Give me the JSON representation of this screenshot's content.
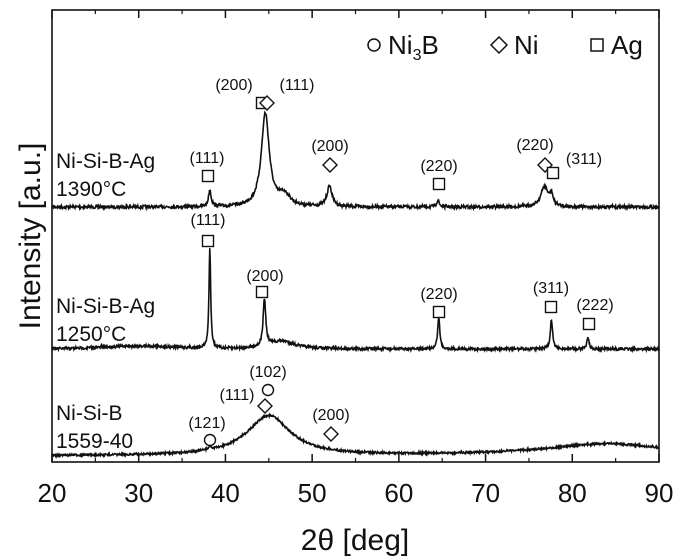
{
  "chart_data": {
    "type": "line",
    "title": "",
    "xlabel": "2θ [deg]",
    "ylabel": "Intensity [a.u.]",
    "xlim": [
      20,
      90
    ],
    "x_ticks": [
      "20",
      "30",
      "40",
      "50",
      "60",
      "70",
      "80",
      "90"
    ],
    "y_ticks_shown": false,
    "grid": false,
    "legend": {
      "placement": "top-right",
      "entries": [
        {
          "marker": "circle",
          "label_main": "Ni",
          "label_sub": "3",
          "label_tail": "B"
        },
        {
          "marker": "diamond",
          "label_main": "Ni",
          "label_sub": "",
          "label_tail": ""
        },
        {
          "marker": "square",
          "label_main": "Ag",
          "label_sub": "",
          "label_tail": ""
        }
      ]
    },
    "series": [
      {
        "name": "Ni-Si-B-Ag 1390°C",
        "label_lines": [
          "Ni-Si-B-Ag",
          "1390°C"
        ],
        "baseline": 0.0,
        "peaks": [
          {
            "x": 38.2,
            "height": 0.18,
            "width": 0.18
          },
          {
            "x": 44.6,
            "height": 1.0,
            "width": 0.55
          },
          {
            "x": 46.8,
            "height": 0.12,
            "width": 0.8
          },
          {
            "x": 52.0,
            "height": 0.22,
            "width": 0.35
          },
          {
            "x": 64.5,
            "height": 0.07,
            "width": 0.18
          },
          {
            "x": 76.8,
            "height": 0.22,
            "width": 0.5
          },
          {
            "x": 77.6,
            "height": 0.12,
            "width": 0.2
          }
        ],
        "annotations": [
          {
            "x": 38.2,
            "marker": "square",
            "label": "(111)"
          },
          {
            "x": 44.3,
            "marker": "square",
            "label": "(200)"
          },
          {
            "x": 44.9,
            "marker": "diamond",
            "label": "(111)"
          },
          {
            "x": 52.0,
            "marker": "diamond",
            "label": "(200)"
          },
          {
            "x": 64.5,
            "marker": "square",
            "label": "(220)"
          },
          {
            "x": 76.7,
            "marker": "diamond",
            "label": "(220)"
          },
          {
            "x": 77.7,
            "marker": "square",
            "label": "(311)"
          }
        ]
      },
      {
        "name": "Ni-Si-B-Ag 1250°C",
        "label_lines": [
          "Ni-Si-B-Ag",
          "1250°C"
        ],
        "baseline": 0.0,
        "peaks": [
          {
            "x": 38.2,
            "height": 1.0,
            "width": 0.12
          },
          {
            "x": 44.5,
            "height": 0.48,
            "width": 0.18
          },
          {
            "x": 46.5,
            "height": 0.08,
            "width": 1.8
          },
          {
            "x": 64.6,
            "height": 0.32,
            "width": 0.15
          },
          {
            "x": 77.6,
            "height": 0.3,
            "width": 0.15
          },
          {
            "x": 81.8,
            "height": 0.12,
            "width": 0.15
          }
        ],
        "annotations": [
          {
            "x": 38.2,
            "marker": "square",
            "label": "(111)"
          },
          {
            "x": 44.4,
            "marker": "square",
            "label": "(200)"
          },
          {
            "x": 64.6,
            "marker": "square",
            "label": "(220)"
          },
          {
            "x": 77.6,
            "marker": "square",
            "label": "(311)"
          },
          {
            "x": 81.8,
            "marker": "square",
            "label": "(222)"
          }
        ]
      },
      {
        "name": "Ni-Si-B 1559-40",
        "label_lines": [
          "Ni-Si-B",
          "1559-40"
        ],
        "baseline": 0.0,
        "peaks": [
          {
            "x": 45.0,
            "height": 1.0,
            "width": 3.0
          },
          {
            "x": 38.2,
            "height": 0.08,
            "width": 0.2
          },
          {
            "x": 84.0,
            "height": 0.3,
            "width": 9.0
          }
        ],
        "annotations": [
          {
            "x": 38.2,
            "marker": "circle",
            "label": "(121)"
          },
          {
            "x": 44.9,
            "marker": "circle",
            "label": "(102)"
          },
          {
            "x": 44.5,
            "marker": "diamond",
            "label": "(111)"
          },
          {
            "x": 52.2,
            "marker": "diamond",
            "label": "(200)"
          }
        ]
      }
    ]
  }
}
